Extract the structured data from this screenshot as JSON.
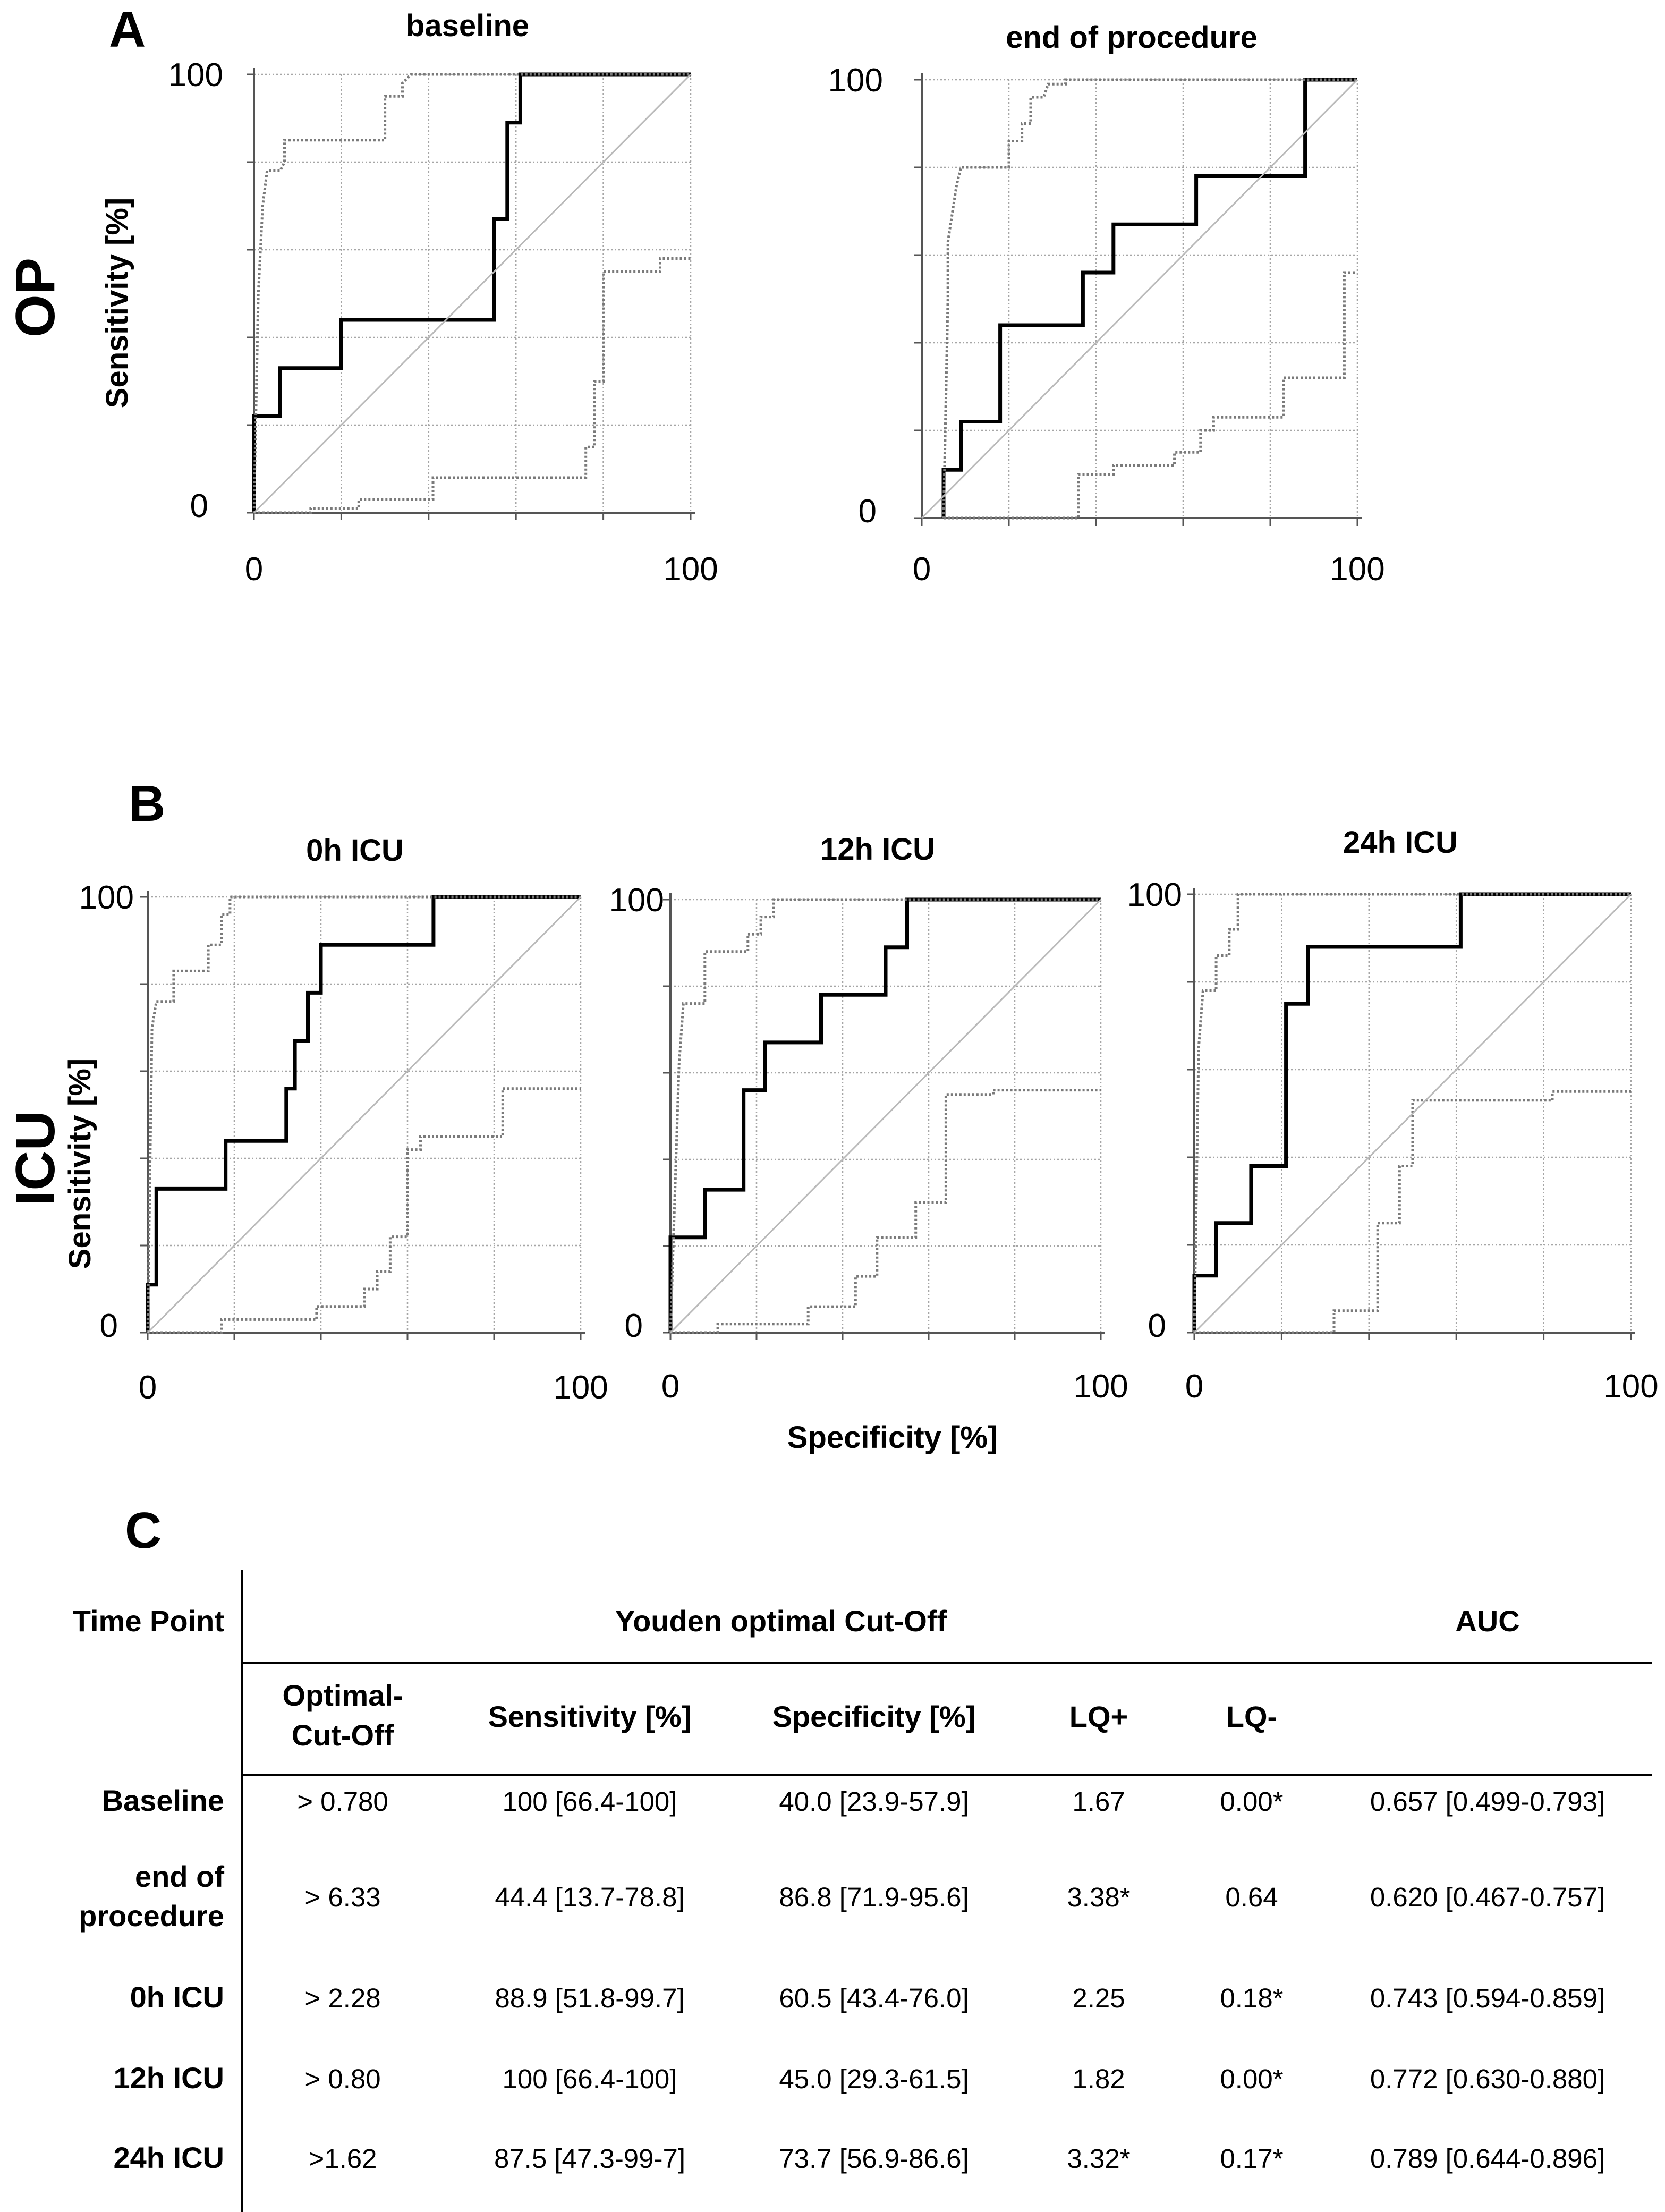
{
  "figure": {
    "panels": {
      "A": "A",
      "B": "B",
      "C": "C"
    },
    "row_labels": {
      "op": "OP",
      "icu": "ICU"
    },
    "axis_titles": {
      "sensitivity": "Sensitivity [%]",
      "specificity": "Specificity [%]"
    },
    "colors": {
      "roc": "#000000",
      "ci": "#7a7a7a",
      "grid": "#a6a6a6",
      "diagonal": "#b9b9b9",
      "text": "#000000"
    }
  },
  "chart_data": [
    {
      "type": "line",
      "title": "baseline",
      "group": "OP",
      "xlabel": "Specificity [%]",
      "ylabel": "Sensitivity [%]",
      "xlim": [
        0,
        100
      ],
      "ylim": [
        0,
        100
      ],
      "xticks": [
        "0",
        "100"
      ],
      "yticks": [
        "0",
        "100"
      ],
      "grid": true,
      "series": [
        {
          "name": "ROC",
          "style": "solid",
          "x": [
            0,
            0,
            6,
            6,
            20,
            20,
            55,
            55,
            58,
            58,
            61,
            61,
            100
          ],
          "y": [
            0,
            22,
            22,
            33,
            33,
            44,
            44,
            67,
            67,
            89,
            89,
            100,
            100
          ]
        },
        {
          "name": "upper 95% CI",
          "style": "dotted",
          "x": [
            0,
            1,
            2,
            3,
            6,
            7,
            7,
            30,
            30,
            34,
            34,
            36,
            100
          ],
          "y": [
            0,
            50,
            70,
            78,
            78,
            80,
            85,
            85,
            95,
            95,
            98,
            100,
            100
          ]
        },
        {
          "name": "lower 95% CI",
          "style": "dotted",
          "x": [
            0,
            13,
            13,
            24,
            24,
            41,
            41,
            76,
            76,
            78,
            78,
            80,
            80,
            93,
            93,
            100
          ],
          "y": [
            0,
            0,
            1,
            1,
            3,
            3,
            8,
            8,
            15,
            15,
            30,
            30,
            55,
            55,
            58,
            58
          ]
        },
        {
          "name": "reference",
          "style": "diagonal",
          "x": [
            0,
            100
          ],
          "y": [
            0,
            100
          ]
        }
      ]
    },
    {
      "type": "line",
      "title": "end of procedure",
      "group": "OP",
      "xlabel": "Specificity [%]",
      "ylabel": "Sensitivity [%]",
      "xlim": [
        0,
        100
      ],
      "ylim": [
        0,
        100
      ],
      "xticks": [
        "0",
        "100"
      ],
      "yticks": [
        "0",
        "100"
      ],
      "grid": true,
      "series": [
        {
          "name": "ROC",
          "style": "solid",
          "x": [
            5,
            5,
            9,
            9,
            18,
            18,
            37,
            37,
            44,
            44,
            63,
            63,
            88,
            88,
            100
          ],
          "y": [
            0,
            11,
            11,
            22,
            22,
            44,
            44,
            56,
            56,
            67,
            67,
            78,
            78,
            100,
            100
          ]
        },
        {
          "name": "upper 95% CI",
          "style": "dotted",
          "x": [
            5,
            6,
            6,
            8,
            9,
            20,
            20,
            23,
            23,
            25,
            25,
            28,
            29,
            33,
            33,
            38,
            38,
            100
          ],
          "y": [
            0,
            50,
            63,
            76,
            80,
            80,
            86,
            86,
            90,
            90,
            96,
            96,
            99,
            99,
            100,
            100,
            100,
            100
          ]
        },
        {
          "name": "lower 95% CI",
          "style": "dotted",
          "x": [
            5,
            36,
            36,
            44,
            44,
            58,
            58,
            64,
            64,
            67,
            67,
            83,
            83,
            97,
            97,
            100
          ],
          "y": [
            0,
            0,
            10,
            10,
            12,
            12,
            15,
            15,
            20,
            20,
            23,
            23,
            32,
            32,
            56,
            56
          ]
        },
        {
          "name": "reference",
          "style": "diagonal",
          "x": [
            0,
            100
          ],
          "y": [
            0,
            100
          ]
        }
      ]
    },
    {
      "type": "line",
      "title": "0h ICU",
      "group": "ICU",
      "xlabel": "Specificity [%]",
      "ylabel": "Sensitivity [%]",
      "xlim": [
        0,
        100
      ],
      "ylim": [
        0,
        100
      ],
      "xticks": [
        "0",
        "100"
      ],
      "yticks": [
        "0",
        "100"
      ],
      "grid": true,
      "series": [
        {
          "name": "ROC",
          "style": "solid",
          "x": [
            0,
            0,
            2,
            2,
            18,
            18,
            32,
            32,
            34,
            34,
            37,
            37,
            40,
            40,
            66,
            66,
            100
          ],
          "y": [
            0,
            11,
            11,
            33,
            33,
            44,
            44,
            56,
            56,
            67,
            67,
            78,
            78,
            89,
            89,
            100,
            100
          ]
        },
        {
          "name": "upper 95% CI",
          "style": "dotted",
          "x": [
            0,
            1,
            2,
            6,
            6,
            14,
            14,
            17,
            17,
            19,
            19,
            100
          ],
          "y": [
            0,
            70,
            76,
            76,
            83,
            83,
            89,
            89,
            96,
            96,
            100,
            100
          ]
        },
        {
          "name": "lower 95% CI",
          "style": "dotted",
          "x": [
            0,
            17,
            17,
            39,
            39,
            50,
            50,
            53,
            53,
            56,
            56,
            60,
            60,
            63,
            63,
            82,
            82,
            100,
            100
          ],
          "y": [
            0,
            0,
            3,
            3,
            6,
            6,
            10,
            10,
            14,
            14,
            22,
            22,
            42,
            42,
            45,
            45,
            56,
            56,
            56
          ]
        },
        {
          "name": "reference",
          "style": "diagonal",
          "x": [
            0,
            100
          ],
          "y": [
            0,
            100
          ]
        }
      ]
    },
    {
      "type": "line",
      "title": "12h ICU",
      "group": "ICU",
      "xlabel": "Specificity [%]",
      "ylabel": "Sensitivity [%]",
      "xlim": [
        0,
        100
      ],
      "ylim": [
        0,
        100
      ],
      "xticks": [
        "0",
        "100"
      ],
      "yticks": [
        "0",
        "100"
      ],
      "grid": true,
      "series": [
        {
          "name": "ROC",
          "style": "solid",
          "x": [
            0,
            0,
            8,
            8,
            17,
            17,
            22,
            22,
            35,
            35,
            50,
            50,
            55,
            55,
            100
          ],
          "y": [
            0,
            22,
            22,
            33,
            33,
            56,
            56,
            67,
            67,
            78,
            78,
            89,
            89,
            100,
            100
          ]
        },
        {
          "name": "upper 95% CI",
          "style": "dotted",
          "x": [
            0,
            2,
            3,
            8,
            8,
            18,
            18,
            21,
            21,
            24,
            24,
            100
          ],
          "y": [
            0,
            62,
            76,
            76,
            88,
            88,
            92,
            92,
            96,
            96,
            100,
            100
          ]
        },
        {
          "name": "lower 95% CI",
          "style": "dotted",
          "x": [
            0,
            11,
            11,
            32,
            32,
            43,
            43,
            48,
            48,
            57,
            57,
            64,
            64,
            75,
            75,
            100
          ],
          "y": [
            0,
            0,
            2,
            2,
            6,
            6,
            13,
            13,
            22,
            22,
            30,
            30,
            55,
            55,
            56,
            56
          ]
        },
        {
          "name": "reference",
          "style": "diagonal",
          "x": [
            0,
            100
          ],
          "y": [
            0,
            100
          ]
        }
      ]
    },
    {
      "type": "line",
      "title": "24h ICU",
      "group": "ICU",
      "xlabel": "Specificity [%]",
      "ylabel": "Sensitivity [%]",
      "xlim": [
        0,
        100
      ],
      "ylim": [
        0,
        100
      ],
      "xticks": [
        "0",
        "100"
      ],
      "yticks": [
        "0",
        "100"
      ],
      "grid": true,
      "series": [
        {
          "name": "ROC",
          "style": "solid",
          "x": [
            0,
            0,
            5,
            5,
            13,
            13,
            21,
            21,
            26,
            26,
            61,
            61,
            100
          ],
          "y": [
            0,
            13,
            13,
            25,
            25,
            38,
            38,
            75,
            75,
            88,
            88,
            100,
            100
          ]
        },
        {
          "name": "upper 95% CI",
          "style": "dotted",
          "x": [
            0,
            1,
            2,
            5,
            5,
            8,
            8,
            10,
            10,
            100
          ],
          "y": [
            0,
            65,
            78,
            78,
            86,
            86,
            92,
            92,
            100,
            100
          ]
        },
        {
          "name": "lower 95% CI",
          "style": "dotted",
          "x": [
            0,
            32,
            32,
            42,
            42,
            47,
            47,
            50,
            50,
            82,
            82,
            100
          ],
          "y": [
            0,
            0,
            5,
            5,
            25,
            25,
            38,
            38,
            53,
            53,
            55,
            55
          ]
        },
        {
          "name": "reference",
          "style": "diagonal",
          "x": [
            0,
            100
          ],
          "y": [
            0,
            100
          ]
        }
      ]
    }
  ],
  "table": {
    "headers": {
      "time_point": "Time Point",
      "youden": "Youden optimal Cut-Off",
      "auc": "AUC",
      "cutoff": [
        "Optimal-",
        "Cut-Off"
      ],
      "sensitivity": "Sensitivity [%]",
      "specificity": "Specificity [%]",
      "lq_pos": "LQ+",
      "lq_neg": "LQ-"
    },
    "rows": [
      {
        "label": [
          "Baseline"
        ],
        "cutoff": "> 0.780",
        "sensitivity": "100 [66.4-100]",
        "specificity": "40.0 [23.9-57.9]",
        "lq_pos": "1.67",
        "lq_neg": "0.00*",
        "auc": "0.657 [0.499-0.793]"
      },
      {
        "label": [
          "end of",
          "procedure"
        ],
        "cutoff": "> 6.33",
        "sensitivity": "44.4 [13.7-78.8]",
        "specificity": "86.8 [71.9-95.6]",
        "lq_pos": "3.38*",
        "lq_neg": "0.64",
        "auc": "0.620 [0.467-0.757]"
      },
      {
        "label": [
          "0h ICU"
        ],
        "cutoff": "> 2.28",
        "sensitivity": "88.9 [51.8-99.7]",
        "specificity": "60.5 [43.4-76.0]",
        "lq_pos": "2.25",
        "lq_neg": "0.18*",
        "auc": "0.743 [0.594-0.859]"
      },
      {
        "label": [
          "12h ICU"
        ],
        "cutoff": "> 0.80",
        "sensitivity": "100 [66.4-100]",
        "specificity": "45.0 [29.3-61.5]",
        "lq_pos": "1.82",
        "lq_neg": "0.00*",
        "auc": "0.772 [0.630-0.880]"
      },
      {
        "label": [
          "24h ICU"
        ],
        "cutoff": ">1.62",
        "sensitivity": "87.5 [47.3-99-7]",
        "specificity": "73.7 [56.9-86.6]",
        "lq_pos": "3.32*",
        "lq_neg": "0.17*",
        "auc": "0.789 [0.644-0.896]"
      }
    ]
  }
}
